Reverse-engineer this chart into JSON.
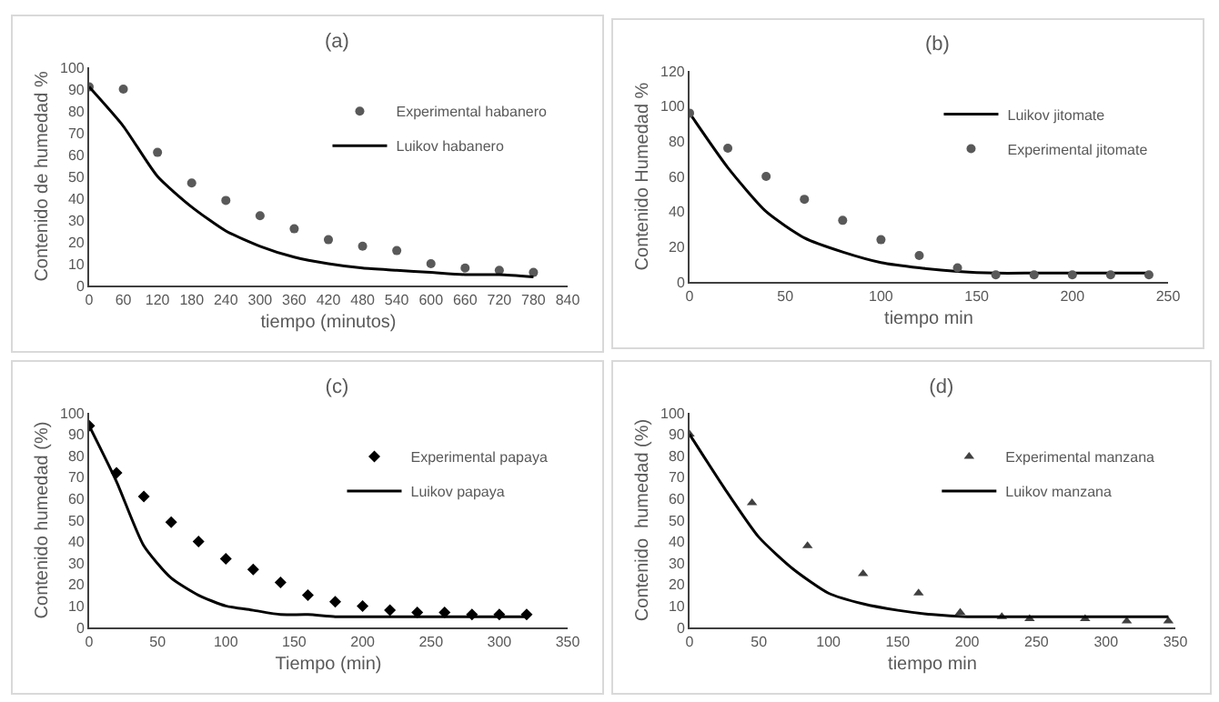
{
  "chart_data": [
    {
      "type": "scatter",
      "title": "(a)",
      "xlabel": "tiempo (minutos)",
      "ylabel": "Contenido de humedad %",
      "legend": "top right",
      "xlim": [
        0,
        840
      ],
      "xticks": [
        0,
        60,
        120,
        180,
        240,
        300,
        360,
        420,
        480,
        540,
        600,
        660,
        720,
        780,
        840
      ],
      "ylim": [
        0,
        100
      ],
      "yticks": [
        0,
        10,
        20,
        30,
        40,
        50,
        60,
        70,
        80,
        90,
        100
      ],
      "series": [
        {
          "name": "Experimental habanero",
          "marker": "circle",
          "color": "#595959",
          "x": [
            0,
            60,
            120,
            180,
            240,
            300,
            360,
            420,
            480,
            540,
            600,
            660,
            720,
            780
          ],
          "values": [
            91,
            90,
            61,
            47,
            39,
            32,
            26,
            21,
            18,
            16,
            10,
            8,
            7,
            6
          ]
        },
        {
          "name": "Luikov habanero",
          "type": "line",
          "marker": "none",
          "color": "#000000",
          "x": [
            0,
            60,
            120,
            180,
            240,
            300,
            360,
            420,
            480,
            540,
            600,
            660,
            720,
            780
          ],
          "values": [
            91,
            73,
            50,
            36,
            25,
            18,
            13,
            10,
            8,
            7,
            6,
            5,
            5,
            4
          ]
        }
      ]
    },
    {
      "type": "scatter",
      "title": "(b)",
      "xlabel": "tiempo min",
      "ylabel": "Contenido Humedad %",
      "legend": "top right",
      "xlim": [
        0,
        250
      ],
      "xticks": [
        0,
        50,
        100,
        150,
        200,
        250
      ],
      "ylim": [
        0,
        120
      ],
      "yticks": [
        0,
        20,
        40,
        60,
        80,
        100,
        120
      ],
      "series": [
        {
          "name": "Luikov jitomate",
          "type": "line",
          "marker": "none",
          "color": "#000000",
          "x": [
            0,
            20,
            40,
            60,
            80,
            100,
            120,
            140,
            160,
            180,
            200,
            220,
            240
          ],
          "values": [
            96,
            65,
            40,
            25,
            17,
            11,
            8,
            6,
            5,
            5,
            5,
            5,
            5
          ]
        },
        {
          "name": "Experimental jitomate",
          "marker": "circle",
          "color": "#595959",
          "x": [
            0,
            20,
            40,
            60,
            80,
            100,
            120,
            140,
            160,
            180,
            200,
            220,
            240
          ],
          "values": [
            96,
            76,
            60,
            47,
            35,
            24,
            15,
            8,
            4,
            4,
            4,
            4,
            4
          ]
        }
      ]
    },
    {
      "type": "scatter",
      "title": "(c)",
      "xlabel": "Tiempo (min)",
      "ylabel": "Contenido humedad (%)",
      "legend": "top right",
      "xlim": [
        0,
        350
      ],
      "xticks": [
        0,
        50,
        100,
        150,
        200,
        250,
        300,
        350
      ],
      "ylim": [
        0,
        100
      ],
      "yticks": [
        0,
        10,
        20,
        30,
        40,
        50,
        60,
        70,
        80,
        90,
        100
      ],
      "series": [
        {
          "name": "Experimental papaya",
          "marker": "diamond",
          "color": "#000000",
          "x": [
            0,
            20,
            40,
            60,
            80,
            100,
            120,
            140,
            160,
            180,
            200,
            220,
            240,
            260,
            280,
            300,
            320
          ],
          "values": [
            94,
            72,
            61,
            49,
            40,
            32,
            27,
            21,
            15,
            12,
            10,
            8,
            7,
            7,
            6,
            6,
            6
          ]
        },
        {
          "name": "Luikov papaya",
          "type": "line",
          "marker": "none",
          "color": "#000000",
          "x": [
            0,
            20,
            40,
            60,
            80,
            100,
            120,
            140,
            160,
            180,
            200,
            250,
            320
          ],
          "values": [
            94,
            68,
            38,
            23,
            15,
            10,
            8,
            6,
            6,
            5,
            5,
            5,
            5
          ]
        }
      ]
    },
    {
      "type": "scatter",
      "title": "(d)",
      "xlabel": "tiempo min",
      "ylabel": "Contenido  humedad (%)",
      "legend": "top right",
      "xlim": [
        0,
        350
      ],
      "xticks": [
        0,
        50,
        100,
        150,
        200,
        250,
        300,
        350
      ],
      "ylim": [
        0,
        100
      ],
      "yticks": [
        0,
        10,
        20,
        30,
        40,
        50,
        60,
        70,
        80,
        90,
        100
      ],
      "series": [
        {
          "name": "Experimental manzana",
          "marker": "triangle",
          "color": "#404040",
          "x": [
            0,
            45,
            85,
            125,
            165,
            195,
            225,
            245,
            285,
            315,
            345
          ],
          "values": [
            90,
            58,
            38,
            25,
            16,
            7,
            5,
            4,
            4,
            3,
            3
          ]
        },
        {
          "name": "Luikov manzana",
          "type": "line",
          "marker": "none",
          "color": "#000000",
          "x": [
            0,
            25,
            50,
            75,
            100,
            125,
            150,
            175,
            200,
            250,
            300,
            345
          ],
          "values": [
            90,
            65,
            42,
            27,
            16,
            11,
            8,
            6,
            5,
            5,
            5,
            5
          ]
        }
      ]
    }
  ]
}
